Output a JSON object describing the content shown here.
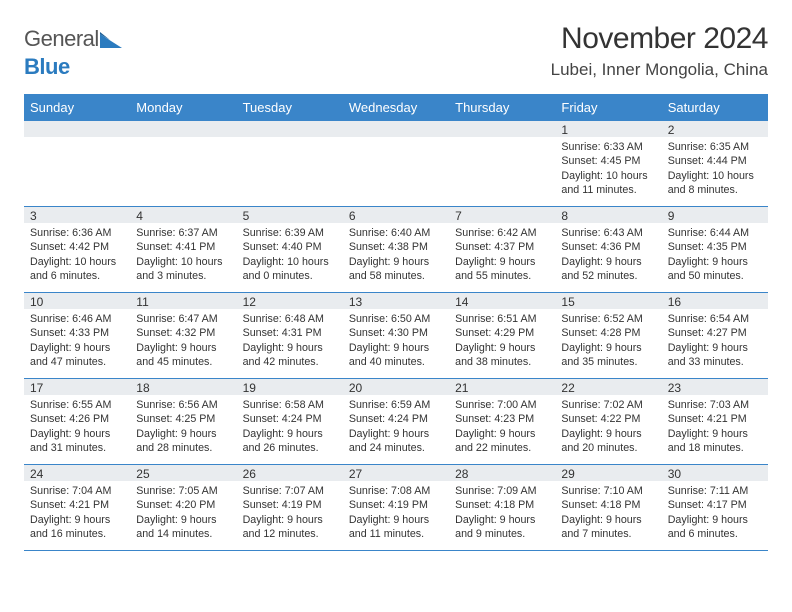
{
  "brand": {
    "name1": "General",
    "name2": "Blue"
  },
  "title": "November 2024",
  "location": "Lubei, Inner Mongolia, China",
  "colors": {
    "header_bg": "#3a85c9",
    "border": "#3a85c9",
    "daynum_bg": "#e9ecef",
    "text": "#333333",
    "brand_blue": "#2b7bbf",
    "background": "#ffffff"
  },
  "weekdays": [
    "Sunday",
    "Monday",
    "Tuesday",
    "Wednesday",
    "Thursday",
    "Friday",
    "Saturday"
  ],
  "weeks": [
    [
      null,
      null,
      null,
      null,
      null,
      {
        "n": "1",
        "sr": "6:33 AM",
        "ss": "4:45 PM",
        "dl": "10 hours and 11 minutes."
      },
      {
        "n": "2",
        "sr": "6:35 AM",
        "ss": "4:44 PM",
        "dl": "10 hours and 8 minutes."
      }
    ],
    [
      {
        "n": "3",
        "sr": "6:36 AM",
        "ss": "4:42 PM",
        "dl": "10 hours and 6 minutes."
      },
      {
        "n": "4",
        "sr": "6:37 AM",
        "ss": "4:41 PM",
        "dl": "10 hours and 3 minutes."
      },
      {
        "n": "5",
        "sr": "6:39 AM",
        "ss": "4:40 PM",
        "dl": "10 hours and 0 minutes."
      },
      {
        "n": "6",
        "sr": "6:40 AM",
        "ss": "4:38 PM",
        "dl": "9 hours and 58 minutes."
      },
      {
        "n": "7",
        "sr": "6:42 AM",
        "ss": "4:37 PM",
        "dl": "9 hours and 55 minutes."
      },
      {
        "n": "8",
        "sr": "6:43 AM",
        "ss": "4:36 PM",
        "dl": "9 hours and 52 minutes."
      },
      {
        "n": "9",
        "sr": "6:44 AM",
        "ss": "4:35 PM",
        "dl": "9 hours and 50 minutes."
      }
    ],
    [
      {
        "n": "10",
        "sr": "6:46 AM",
        "ss": "4:33 PM",
        "dl": "9 hours and 47 minutes."
      },
      {
        "n": "11",
        "sr": "6:47 AM",
        "ss": "4:32 PM",
        "dl": "9 hours and 45 minutes."
      },
      {
        "n": "12",
        "sr": "6:48 AM",
        "ss": "4:31 PM",
        "dl": "9 hours and 42 minutes."
      },
      {
        "n": "13",
        "sr": "6:50 AM",
        "ss": "4:30 PM",
        "dl": "9 hours and 40 minutes."
      },
      {
        "n": "14",
        "sr": "6:51 AM",
        "ss": "4:29 PM",
        "dl": "9 hours and 38 minutes."
      },
      {
        "n": "15",
        "sr": "6:52 AM",
        "ss": "4:28 PM",
        "dl": "9 hours and 35 minutes."
      },
      {
        "n": "16",
        "sr": "6:54 AM",
        "ss": "4:27 PM",
        "dl": "9 hours and 33 minutes."
      }
    ],
    [
      {
        "n": "17",
        "sr": "6:55 AM",
        "ss": "4:26 PM",
        "dl": "9 hours and 31 minutes."
      },
      {
        "n": "18",
        "sr": "6:56 AM",
        "ss": "4:25 PM",
        "dl": "9 hours and 28 minutes."
      },
      {
        "n": "19",
        "sr": "6:58 AM",
        "ss": "4:24 PM",
        "dl": "9 hours and 26 minutes."
      },
      {
        "n": "20",
        "sr": "6:59 AM",
        "ss": "4:24 PM",
        "dl": "9 hours and 24 minutes."
      },
      {
        "n": "21",
        "sr": "7:00 AM",
        "ss": "4:23 PM",
        "dl": "9 hours and 22 minutes."
      },
      {
        "n": "22",
        "sr": "7:02 AM",
        "ss": "4:22 PM",
        "dl": "9 hours and 20 minutes."
      },
      {
        "n": "23",
        "sr": "7:03 AM",
        "ss": "4:21 PM",
        "dl": "9 hours and 18 minutes."
      }
    ],
    [
      {
        "n": "24",
        "sr": "7:04 AM",
        "ss": "4:21 PM",
        "dl": "9 hours and 16 minutes."
      },
      {
        "n": "25",
        "sr": "7:05 AM",
        "ss": "4:20 PM",
        "dl": "9 hours and 14 minutes."
      },
      {
        "n": "26",
        "sr": "7:07 AM",
        "ss": "4:19 PM",
        "dl": "9 hours and 12 minutes."
      },
      {
        "n": "27",
        "sr": "7:08 AM",
        "ss": "4:19 PM",
        "dl": "9 hours and 11 minutes."
      },
      {
        "n": "28",
        "sr": "7:09 AM",
        "ss": "4:18 PM",
        "dl": "9 hours and 9 minutes."
      },
      {
        "n": "29",
        "sr": "7:10 AM",
        "ss": "4:18 PM",
        "dl": "9 hours and 7 minutes."
      },
      {
        "n": "30",
        "sr": "7:11 AM",
        "ss": "4:17 PM",
        "dl": "9 hours and 6 minutes."
      }
    ]
  ],
  "labels": {
    "sunrise": "Sunrise:",
    "sunset": "Sunset:",
    "daylight": "Daylight:"
  }
}
